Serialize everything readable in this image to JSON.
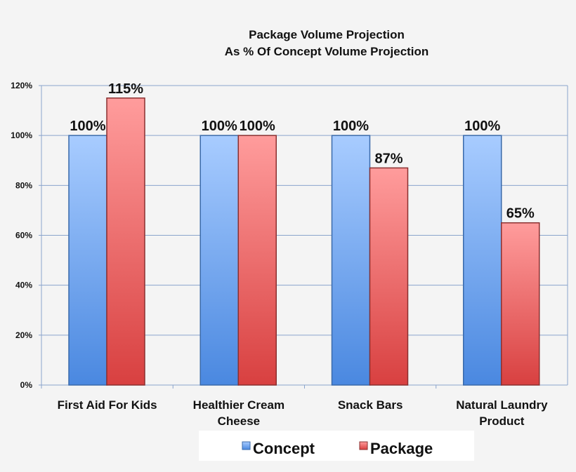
{
  "chart_data": {
    "type": "bar",
    "title": "Package Volume Projection",
    "subtitle": "As % Of Concept Volume Projection",
    "categories": [
      [
        "First Aid For Kids"
      ],
      [
        "Healthier Cream",
        "Cheese"
      ],
      [
        "Snack Bars"
      ],
      [
        "Natural Laundry",
        "Product"
      ]
    ],
    "series": [
      {
        "name": "Concept",
        "values": [
          100,
          100,
          100,
          100
        ],
        "labels": [
          "100%",
          "100%",
          "100%",
          "100%"
        ],
        "color": "#7fb0f5"
      },
      {
        "name": "Package",
        "values": [
          115,
          100,
          87,
          65
        ],
        "labels": [
          "115%",
          "100%",
          "87%",
          "65%"
        ],
        "color": "#f07070"
      }
    ],
    "ylim": [
      0,
      120
    ],
    "yticks": [
      "0%",
      "20%",
      "40%",
      "60%",
      "80%",
      "100%",
      "120%"
    ],
    "grid": true,
    "legend": "bottom"
  }
}
